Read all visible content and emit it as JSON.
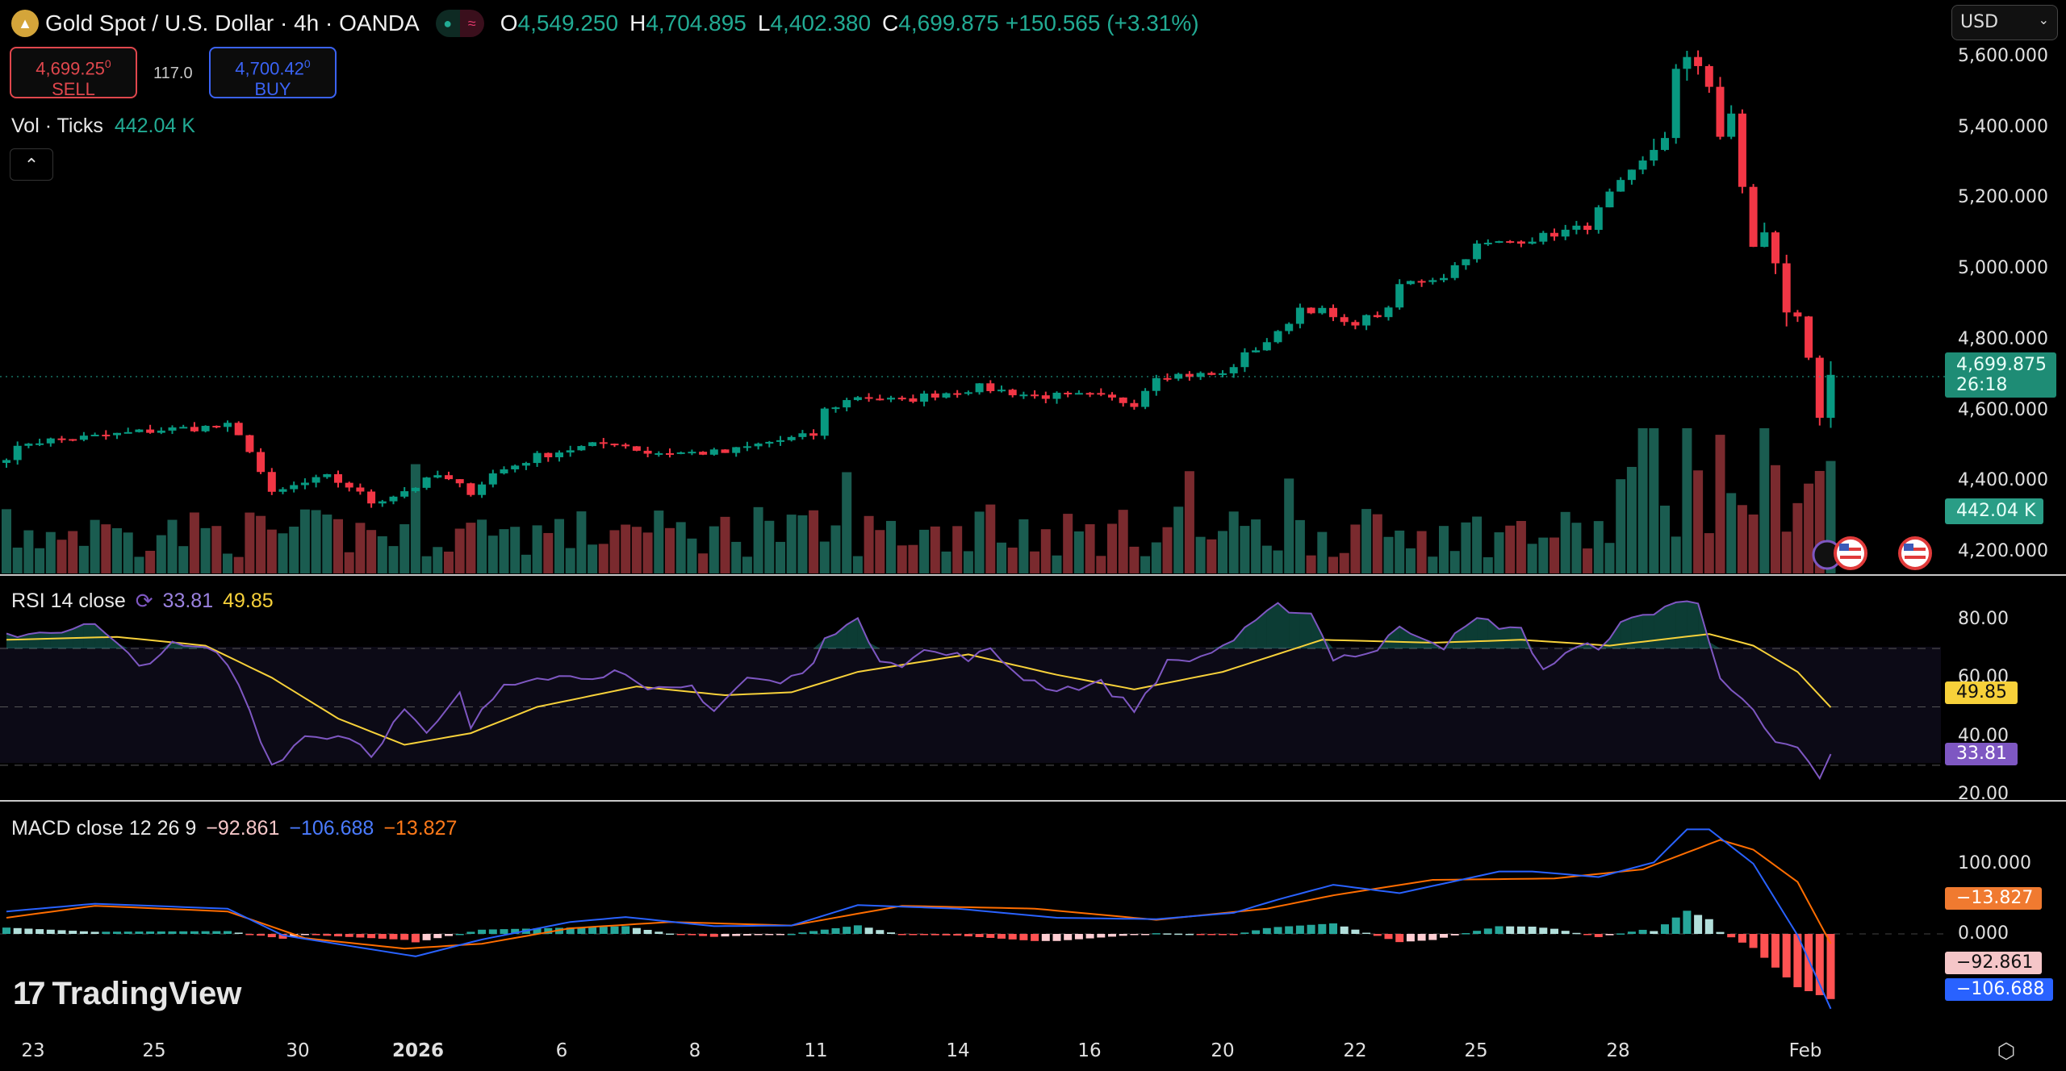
{
  "header": {
    "symbol_title": "Gold Spot / U.S. Dollar · 4h · OANDA",
    "ohlc": {
      "o_label": "O",
      "o": "4,549.250",
      "h_label": "H",
      "h": "4,704.895",
      "l_label": "L",
      "l": "4,402.380",
      "c_label": "C",
      "c": "4,699.875",
      "change": "+150.565 (+3.31%)"
    },
    "sell": {
      "price": "4,699.25",
      "sup": "0",
      "label": "SELL"
    },
    "buy": {
      "price": "4,700.42",
      "sup": "0",
      "label": "BUY"
    },
    "spread": "117.0",
    "volume": {
      "label": "Vol · Ticks",
      "value": "442.04 K"
    },
    "collapse_icon": "chevron-up-icon",
    "currency": "USD"
  },
  "price_axis": {
    "ticks": [
      "5,600.000",
      "5,400.000",
      "5,200.000",
      "5,000.000",
      "4,800.000",
      "4,600.000",
      "4,400.000",
      "4,200.000"
    ],
    "last_price": "4,699.875",
    "countdown": "26:18",
    "volume_tag": "442.04 K"
  },
  "rsi": {
    "label": "RSI 14 close",
    "value": "33.81",
    "ma": "49.85",
    "ticks": [
      "80.00",
      "60.00",
      "40.00",
      "20.00"
    ]
  },
  "macd": {
    "label": "MACD close 12 26 9",
    "hist": "−92.861",
    "macd": "−106.688",
    "signal": "−13.827",
    "ticks": [
      "100.000",
      "0.000"
    ],
    "tag_signal": "−13.827",
    "tag_hist": "−92.861",
    "tag_macd": "−106.688"
  },
  "time_axis": [
    "23",
    "25",
    "30",
    "2026",
    "6",
    "8",
    "11",
    "14",
    "16",
    "20",
    "22",
    "25",
    "28",
    "Feb"
  ],
  "branding": "TradingView",
  "colors": {
    "up": "#089981",
    "down": "#f23645",
    "rsi": "#7e57c2",
    "rsi_ma": "#f7d13a",
    "macd": "#2962ff",
    "signal": "#ff6d00"
  },
  "chart_data": {
    "type": "candlestick",
    "bars": 166,
    "price_range": [
      4200,
      5600
    ],
    "close_keypoints": [
      [
        0,
        4470
      ],
      [
        2,
        4510
      ],
      [
        8,
        4525
      ],
      [
        14,
        4545
      ],
      [
        20,
        4555
      ],
      [
        22,
        4490
      ],
      [
        24,
        4360
      ],
      [
        26,
        4385
      ],
      [
        29,
        4410
      ],
      [
        31,
        4385
      ],
      [
        33,
        4340
      ],
      [
        35,
        4360
      ],
      [
        37,
        4385
      ],
      [
        39,
        4415
      ],
      [
        42,
        4370
      ],
      [
        44,
        4420
      ],
      [
        48,
        4470
      ],
      [
        51,
        4490
      ],
      [
        55,
        4510
      ],
      [
        58,
        4480
      ],
      [
        62,
        4480
      ],
      [
        65,
        4480
      ],
      [
        69,
        4510
      ],
      [
        73,
        4530
      ],
      [
        74,
        4600
      ],
      [
        77,
        4640
      ],
      [
        81,
        4625
      ],
      [
        83,
        4640
      ],
      [
        88,
        4665
      ],
      [
        93,
        4640
      ],
      [
        98,
        4640
      ],
      [
        102,
        4620
      ],
      [
        104,
        4700
      ],
      [
        110,
        4700
      ],
      [
        112,
        4755
      ],
      [
        115,
        4815
      ],
      [
        117,
        4890
      ],
      [
        119,
        4880
      ],
      [
        121,
        4840
      ],
      [
        125,
        4880
      ],
      [
        126,
        4955
      ],
      [
        130,
        4980
      ],
      [
        133,
        5065
      ],
      [
        138,
        5085
      ],
      [
        143,
        5120
      ],
      [
        145,
        5210
      ],
      [
        148,
        5300
      ],
      [
        150,
        5375
      ],
      [
        151,
        5560
      ],
      [
        152,
        5590
      ],
      [
        153,
        5575
      ],
      [
        154,
        5520
      ],
      [
        155,
        5375
      ],
      [
        156,
        5430
      ],
      [
        157,
        5230
      ],
      [
        158,
        5065
      ],
      [
        159,
        5100
      ],
      [
        160,
        5010
      ],
      [
        161,
        4880
      ],
      [
        162,
        4860
      ],
      [
        163,
        4750
      ],
      [
        164,
        4585
      ],
      [
        165,
        4699.875
      ]
    ],
    "rsi_keypoints": [
      [
        0,
        74.6
      ],
      [
        4,
        76
      ],
      [
        8,
        78
      ],
      [
        12,
        64
      ],
      [
        15,
        71
      ],
      [
        19,
        69
      ],
      [
        21,
        58
      ],
      [
        24,
        30
      ],
      [
        27,
        40
      ],
      [
        31,
        40
      ],
      [
        33,
        34
      ],
      [
        36,
        49
      ],
      [
        38,
        40
      ],
      [
        41,
        54
      ],
      [
        42,
        43
      ],
      [
        45,
        58
      ],
      [
        48,
        61
      ],
      [
        51,
        60
      ],
      [
        55,
        62
      ],
      [
        58,
        55
      ],
      [
        62,
        57
      ],
      [
        64,
        49
      ],
      [
        67,
        60
      ],
      [
        70,
        58
      ],
      [
        73,
        64
      ],
      [
        74,
        75
      ],
      [
        77,
        79
      ],
      [
        79,
        67
      ],
      [
        81,
        65
      ],
      [
        83,
        69
      ],
      [
        87,
        67
      ],
      [
        89,
        69
      ],
      [
        92,
        60
      ],
      [
        95,
        56
      ],
      [
        99,
        58
      ],
      [
        102,
        49
      ],
      [
        105,
        65
      ],
      [
        108,
        67
      ],
      [
        111,
        73
      ],
      [
        115,
        84.5
      ],
      [
        118,
        82
      ],
      [
        120,
        67
      ],
      [
        124,
        69
      ],
      [
        126,
        78
      ],
      [
        130,
        71
      ],
      [
        133,
        80
      ],
      [
        137,
        76
      ],
      [
        139,
        63
      ],
      [
        142,
        70
      ],
      [
        144,
        71
      ],
      [
        146,
        78
      ],
      [
        151,
        86
      ],
      [
        153,
        85
      ],
      [
        155,
        61
      ],
      [
        157,
        53
      ],
      [
        160,
        37
      ],
      [
        162,
        35
      ],
      [
        164,
        26
      ],
      [
        165,
        33.81
      ]
    ],
    "rsi_ma_keypoints": [
      [
        0,
        73
      ],
      [
        10,
        74
      ],
      [
        18,
        71
      ],
      [
        24,
        60
      ],
      [
        30,
        46
      ],
      [
        36,
        37
      ],
      [
        42,
        41
      ],
      [
        48,
        50
      ],
      [
        57,
        57
      ],
      [
        65,
        54
      ],
      [
        71,
        55
      ],
      [
        77,
        62
      ],
      [
        87,
        68
      ],
      [
        95,
        61
      ],
      [
        102,
        56
      ],
      [
        110,
        62
      ],
      [
        119,
        73
      ],
      [
        129,
        72
      ],
      [
        137,
        73
      ],
      [
        145,
        71
      ],
      [
        154,
        75
      ],
      [
        158,
        71
      ],
      [
        162,
        62
      ],
      [
        165,
        49.85
      ]
    ],
    "macd_keypoints": [
      [
        0,
        32
      ],
      [
        8,
        43
      ],
      [
        20,
        36
      ],
      [
        25,
        -2
      ],
      [
        31,
        -17
      ],
      [
        37,
        -32
      ],
      [
        43,
        -8
      ],
      [
        51,
        17
      ],
      [
        56,
        24
      ],
      [
        64,
        11
      ],
      [
        71,
        12
      ],
      [
        77,
        41
      ],
      [
        86,
        36
      ],
      [
        95,
        23
      ],
      [
        104,
        21
      ],
      [
        111,
        30
      ],
      [
        115,
        49
      ],
      [
        120,
        70
      ],
      [
        126,
        58
      ],
      [
        135,
        89
      ],
      [
        138,
        89
      ],
      [
        144,
        81
      ],
      [
        149,
        102
      ],
      [
        152,
        149
      ],
      [
        154,
        149
      ],
      [
        158,
        100
      ],
      [
        162,
        -2
      ],
      [
        165,
        -106.688
      ]
    ],
    "signal_keypoints": [
      [
        0,
        23
      ],
      [
        8,
        40
      ],
      [
        20,
        32
      ],
      [
        27,
        -6
      ],
      [
        36,
        -21
      ],
      [
        43,
        -14
      ],
      [
        51,
        8
      ],
      [
        60,
        17
      ],
      [
        71,
        12
      ],
      [
        81,
        40
      ],
      [
        93,
        36
      ],
      [
        104,
        20
      ],
      [
        114,
        36
      ],
      [
        120,
        55
      ],
      [
        129,
        77
      ],
      [
        140,
        79
      ],
      [
        148,
        92
      ],
      [
        155,
        134
      ],
      [
        158,
        120
      ],
      [
        162,
        74
      ],
      [
        165,
        -13.827
      ]
    ],
    "rsi_levels": [
      70,
      50,
      30
    ],
    "rsi_range": [
      20,
      80
    ]
  }
}
